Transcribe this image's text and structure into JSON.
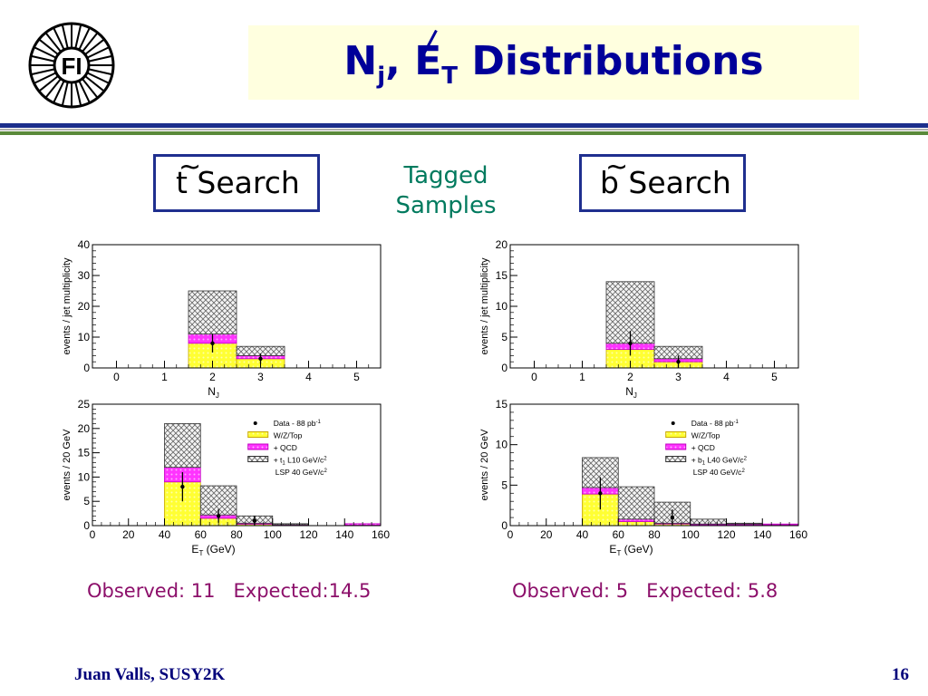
{
  "slide": {
    "title_main": "N",
    "title_sub_j": "j",
    "title_sep": ", ",
    "title_e": "E",
    "title_sub_t": "T",
    "title_rest": " Distributions",
    "logo_text": "FI",
    "stop_search": "t Search",
    "stop_tilde": "~",
    "sbottom_search": "b Search",
    "sbottom_tilde": "~",
    "tagged": [
      "Tagged",
      "Samples"
    ],
    "stop_observed": "Observed: 11   Expected:14.5",
    "sbottom_observed": "Observed: 5   Expected: 5.8",
    "footer_left": "Juan Valls, SUSY2K",
    "footer_right": "16"
  },
  "colors": {
    "title": "#000099",
    "wzt": "#ffff33",
    "qcd": "#ff33ff",
    "signal_hatch": "#666666",
    "obs_text": "#8c0f6a",
    "footer": "#00007a"
  },
  "chart_data": [
    {
      "id": "stop_nj",
      "type": "bar",
      "stacked": true,
      "xlabel": "N",
      "xlabel_sub": "J",
      "ylabel": "events / jet multiplicity",
      "xlim": [
        -0.5,
        5.5
      ],
      "ylim": [
        0,
        40
      ],
      "xticks": [
        0,
        1,
        2,
        3,
        4,
        5
      ],
      "yticks": [
        0,
        10,
        20,
        30,
        40
      ],
      "bins": [
        [
          1.5,
          2.5
        ],
        [
          2.5,
          3.5
        ]
      ],
      "series": [
        {
          "name": "W/Z/Top",
          "values": [
            8,
            3
          ]
        },
        {
          "name": "+ QCD",
          "values": [
            3,
            1
          ]
        },
        {
          "name": "+ t1 L10",
          "values": [
            14,
            3
          ]
        }
      ],
      "data_points": [
        {
          "x": 2,
          "y": 8,
          "err": 3
        },
        {
          "x": 3,
          "y": 3,
          "err": 1.7
        }
      ]
    },
    {
      "id": "stop_met",
      "type": "bar",
      "stacked": true,
      "xlabel": "E",
      "xlabel_sub": "T",
      "xlabel_unit": " (GeV)",
      "ylabel": "events / 20 GeV",
      "xlim": [
        0,
        160
      ],
      "ylim": [
        0,
        25
      ],
      "xticks": [
        0,
        20,
        40,
        60,
        80,
        100,
        120,
        140,
        160
      ],
      "yticks": [
        0,
        5,
        10,
        15,
        20,
        25
      ],
      "bins": [
        [
          40,
          60
        ],
        [
          60,
          80
        ],
        [
          80,
          100
        ],
        [
          100,
          120
        ],
        [
          140,
          160
        ]
      ],
      "series": [
        {
          "name": "W/Z/Top",
          "values": [
            9,
            1.5,
            0.3,
            0.1,
            0.1
          ]
        },
        {
          "name": "+ QCD",
          "values": [
            3,
            0.7,
            0.2,
            0.1,
            0.3
          ]
        },
        {
          "name": "+ t1 L10 GeV/c2 LSP 40 GeV/c2",
          "values": [
            9,
            6,
            1.5,
            0.2,
            0
          ]
        }
      ],
      "data_points": [
        {
          "x": 50,
          "y": 8,
          "err": 3
        },
        {
          "x": 70,
          "y": 2,
          "err": 1.4
        },
        {
          "x": 90,
          "y": 1,
          "err": 1
        }
      ],
      "legend": [
        {
          "label": "Data - 88 pb",
          "sup": "-1",
          "kind": "point"
        },
        {
          "label": "W/Z/Top",
          "kind": "wzt"
        },
        {
          "label": "+ QCD",
          "kind": "qcd"
        },
        {
          "label": "+ t",
          "sub": "1",
          "label2": " L10 GeV/c",
          "sup": "2",
          "kind": "sig"
        },
        {
          "label": "LSP 40 GeV/c",
          "sup": "2",
          "kind": "none"
        }
      ],
      "legend_placement": "top-right"
    },
    {
      "id": "sbottom_nj",
      "type": "bar",
      "stacked": true,
      "xlabel": "N",
      "xlabel_sub": "J",
      "ylabel": "events / jet multiplicity",
      "xlim": [
        -0.5,
        5.5
      ],
      "ylim": [
        0,
        20
      ],
      "xticks": [
        0,
        1,
        2,
        3,
        4,
        5
      ],
      "yticks": [
        0,
        5,
        10,
        15,
        20
      ],
      "bins": [
        [
          1.5,
          2.5
        ],
        [
          2.5,
          3.5
        ]
      ],
      "series": [
        {
          "name": "W/Z/Top",
          "values": [
            3,
            1
          ]
        },
        {
          "name": "+ QCD",
          "values": [
            1,
            0.5
          ]
        },
        {
          "name": "+ b1 L40",
          "values": [
            10,
            2
          ]
        }
      ],
      "data_points": [
        {
          "x": 2,
          "y": 4,
          "err": 2
        },
        {
          "x": 3,
          "y": 1,
          "err": 1
        }
      ]
    },
    {
      "id": "sbottom_met",
      "type": "bar",
      "stacked": true,
      "xlabel": "E",
      "xlabel_sub": "T",
      "xlabel_unit": " (GeV)",
      "ylabel": "events / 20 GeV",
      "xlim": [
        0,
        160
      ],
      "ylim": [
        0,
        15
      ],
      "xticks": [
        0,
        20,
        40,
        60,
        80,
        100,
        120,
        140,
        160
      ],
      "yticks": [
        0,
        5,
        10,
        15
      ],
      "bins": [
        [
          40,
          60
        ],
        [
          60,
          80
        ],
        [
          80,
          100
        ],
        [
          100,
          120
        ],
        [
          120,
          140
        ],
        [
          140,
          160
        ]
      ],
      "series": [
        {
          "name": "W/Z/Top",
          "values": [
            3.9,
            0.5,
            0.2,
            0.1,
            0.1,
            0.1
          ]
        },
        {
          "name": "+ QCD",
          "values": [
            0.8,
            0.3,
            0.1,
            0.1,
            0.1,
            0.1
          ]
        },
        {
          "name": "+ b1 L40 GeV/c2 LSP 40 GeV/c2",
          "values": [
            3.7,
            4,
            2.6,
            0.6,
            0.1,
            0
          ]
        }
      ],
      "data_points": [
        {
          "x": 50,
          "y": 4,
          "err": 2
        },
        {
          "x": 90,
          "y": 1,
          "err": 1
        }
      ],
      "legend": [
        {
          "label": "Data - 88 pb",
          "sup": "-1",
          "kind": "point"
        },
        {
          "label": "W/Z/Top",
          "kind": "wzt"
        },
        {
          "label": "+ QCD",
          "kind": "qcd"
        },
        {
          "label": "+ b",
          "sub": "1",
          "label2": " L40 GeV/c",
          "sup": "2",
          "kind": "sig"
        },
        {
          "label": "LSP 40 GeV/c",
          "sup": "2",
          "kind": "none"
        }
      ],
      "legend_placement": "top-right"
    }
  ]
}
